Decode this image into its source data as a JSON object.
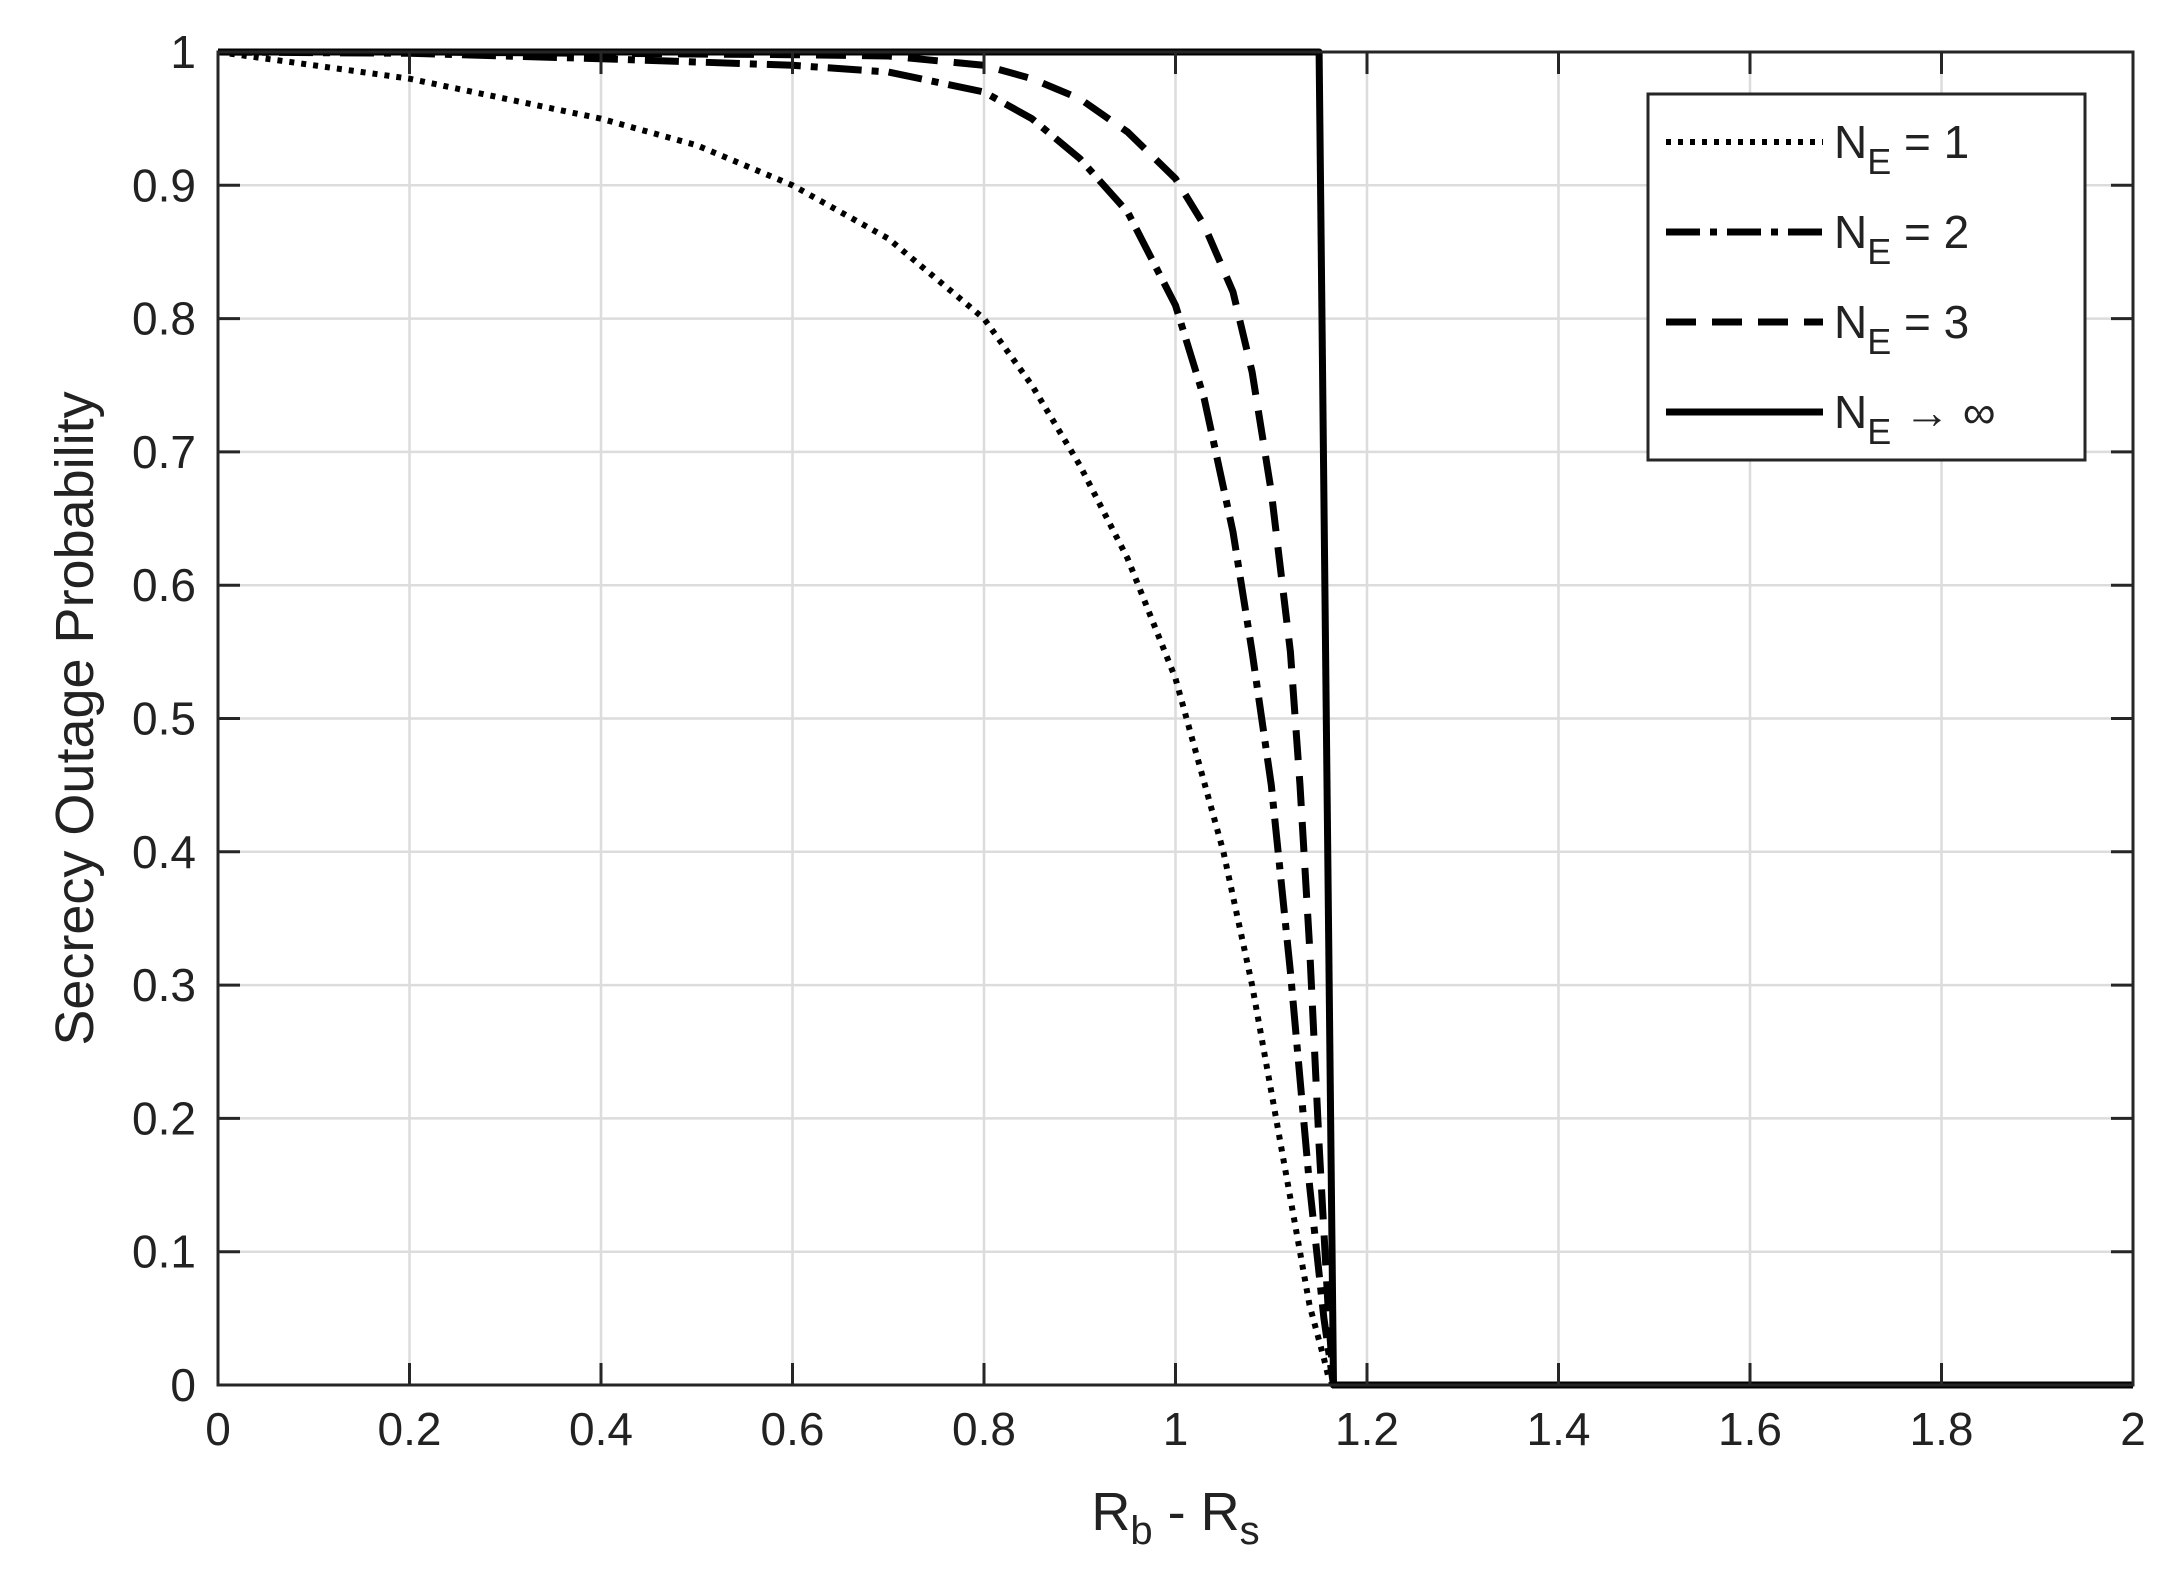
{
  "chart_data": {
    "type": "line",
    "title": "",
    "xlabel": {
      "main": "R",
      "sub1": "b",
      "mid": " - R",
      "sub2": "s"
    },
    "ylabel": "Secrecy Outage Probability",
    "xlim": [
      0,
      2
    ],
    "ylim": [
      0,
      1
    ],
    "x_ticks": [
      0,
      0.2,
      0.4,
      0.6,
      0.8,
      1,
      1.2,
      1.4,
      1.6,
      1.8,
      2
    ],
    "x_tick_labels": [
      "0",
      "0.2",
      "0.4",
      "0.6",
      "0.8",
      "1",
      "1.2",
      "1.4",
      "1.6",
      "1.8",
      "2"
    ],
    "y_ticks": [
      0,
      0.1,
      0.2,
      0.3,
      0.4,
      0.5,
      0.6,
      0.7,
      0.8,
      0.9,
      1
    ],
    "y_tick_labels": [
      "0",
      "0.1",
      "0.2",
      "0.3",
      "0.4",
      "0.5",
      "0.6",
      "0.7",
      "0.8",
      "0.9",
      "1"
    ],
    "grid": true,
    "legend_position": "top-right",
    "line_color": "#000000",
    "grid_color": "#dcdcdc",
    "series": [
      {
        "legend": {
          "main": "N",
          "sub": "E",
          "rest": " = 1"
        },
        "style": "dotted",
        "x": [
          0,
          0.1,
          0.2,
          0.3,
          0.4,
          0.5,
          0.6,
          0.7,
          0.8,
          0.85,
          0.9,
          0.95,
          1.0,
          1.05,
          1.08,
          1.1,
          1.12,
          1.14,
          1.155,
          1.16,
          1.165,
          2
        ],
        "y": [
          1,
          0.99,
          0.98,
          0.965,
          0.95,
          0.93,
          0.9,
          0.86,
          0.8,
          0.75,
          0.69,
          0.62,
          0.53,
          0.4,
          0.3,
          0.22,
          0.14,
          0.06,
          0.02,
          0.005,
          0,
          0
        ]
      },
      {
        "legend": {
          "main": "N",
          "sub": "E",
          "rest": " = 2"
        },
        "style": "dash-dot",
        "x": [
          0,
          0.2,
          0.4,
          0.6,
          0.7,
          0.8,
          0.85,
          0.9,
          0.95,
          1.0,
          1.03,
          1.06,
          1.08,
          1.1,
          1.12,
          1.14,
          1.155,
          1.165,
          2
        ],
        "y": [
          1,
          0.999,
          0.995,
          0.99,
          0.985,
          0.97,
          0.95,
          0.92,
          0.88,
          0.81,
          0.74,
          0.64,
          0.55,
          0.45,
          0.31,
          0.15,
          0.05,
          0,
          0
        ]
      },
      {
        "legend": {
          "main": "N",
          "sub": "E",
          "rest": " = 3"
        },
        "style": "dashed",
        "x": [
          0,
          0.2,
          0.4,
          0.6,
          0.7,
          0.8,
          0.85,
          0.9,
          0.95,
          1.0,
          1.03,
          1.06,
          1.08,
          1.1,
          1.12,
          1.13,
          1.14,
          1.15,
          1.16,
          1.165,
          2
        ],
        "y": [
          1,
          1,
          0.999,
          0.998,
          0.997,
          0.99,
          0.98,
          0.965,
          0.94,
          0.905,
          0.87,
          0.82,
          0.76,
          0.67,
          0.55,
          0.45,
          0.33,
          0.18,
          0.05,
          0,
          0
        ]
      },
      {
        "legend": {
          "main": "N",
          "sub": "E",
          "rest": " → ∞"
        },
        "style": "solid",
        "x": [
          0,
          1.15,
          1.165,
          2
        ],
        "y": [
          1,
          1,
          0,
          0
        ]
      }
    ]
  }
}
